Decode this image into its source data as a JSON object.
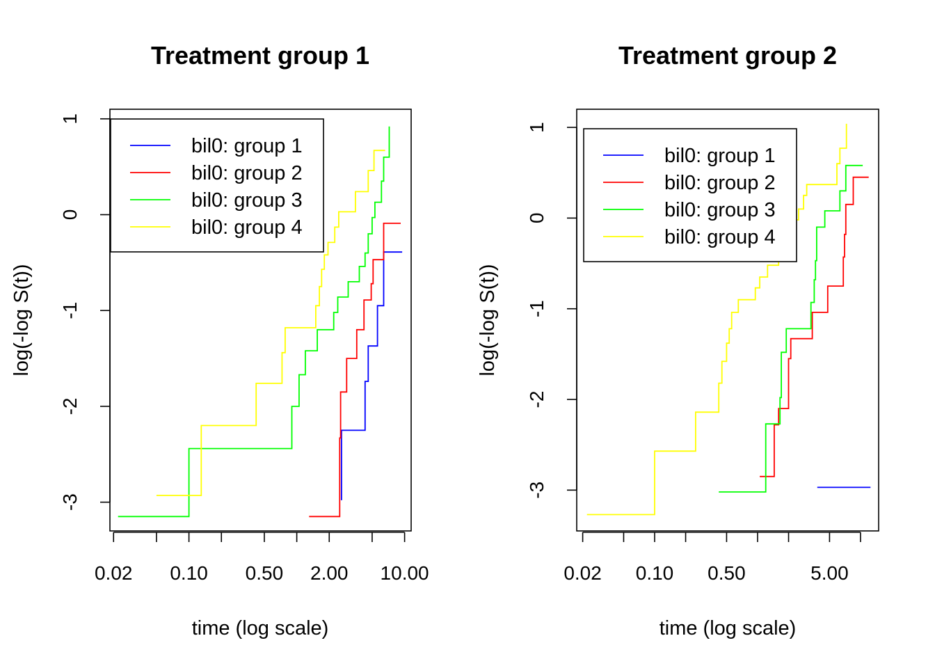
{
  "chart_data": [
    {
      "type": "line",
      "title": "Treatment group 1",
      "xlabel": "time (log scale)",
      "ylabel": "log(-log S(t))",
      "x_scale": "log",
      "xlim": [
        0.0185,
        11.5
      ],
      "ylim": [
        -3.3,
        1.1
      ],
      "x_ticks": [
        0.02,
        0.05,
        0.1,
        0.2,
        0.5,
        1.0,
        2.0,
        5.0,
        10.0
      ],
      "x_tick_labels": [
        "0.02",
        "",
        "0.10",
        "",
        "0.50",
        "",
        "2.00",
        "",
        "10.00"
      ],
      "y_ticks": [
        -3,
        -2,
        -1,
        0,
        1
      ],
      "y_tick_labels": [
        "-3",
        "-2",
        "-1",
        "0",
        "1"
      ],
      "legend_position": "top-left",
      "series": [
        {
          "name": "bil0: group 1",
          "color": "#0000ff",
          "points": [
            [
              2.6,
              -2.98
            ],
            [
              2.6,
              -2.25
            ],
            [
              4.3,
              -2.25
            ],
            [
              4.3,
              -1.74
            ],
            [
              4.6,
              -1.74
            ],
            [
              4.6,
              -1.37
            ],
            [
              5.6,
              -1.37
            ],
            [
              5.6,
              -0.95
            ],
            [
              6.4,
              -0.95
            ],
            [
              6.4,
              -0.39
            ],
            [
              9.5,
              -0.39
            ]
          ]
        },
        {
          "name": "bil0: group 2",
          "color": "#ff0000",
          "points": [
            [
              1.3,
              -3.15
            ],
            [
              2.5,
              -3.15
            ],
            [
              2.5,
              -2.33
            ],
            [
              2.55,
              -2.33
            ],
            [
              2.55,
              -1.85
            ],
            [
              2.9,
              -1.85
            ],
            [
              2.9,
              -1.5
            ],
            [
              3.6,
              -1.5
            ],
            [
              3.6,
              -1.2
            ],
            [
              4.2,
              -1.2
            ],
            [
              4.2,
              -0.89
            ],
            [
              4.9,
              -0.89
            ],
            [
              4.9,
              -0.72
            ],
            [
              5.1,
              -0.72
            ],
            [
              5.1,
              -0.47
            ],
            [
              6.4,
              -0.47
            ],
            [
              6.4,
              -0.09
            ],
            [
              9.2,
              -0.09
            ]
          ]
        },
        {
          "name": "bil0: group 3",
          "color": "#00ff00",
          "points": [
            [
              0.022,
              -3.15
            ],
            [
              0.1,
              -3.15
            ],
            [
              0.1,
              -2.44
            ],
            [
              0.9,
              -2.44
            ],
            [
              0.9,
              -2.0
            ],
            [
              1.05,
              -2.0
            ],
            [
              1.05,
              -1.67
            ],
            [
              1.2,
              -1.67
            ],
            [
              1.2,
              -1.42
            ],
            [
              1.55,
              -1.42
            ],
            [
              1.55,
              -1.2
            ],
            [
              2.2,
              -1.2
            ],
            [
              2.2,
              -1.02
            ],
            [
              2.4,
              -1.02
            ],
            [
              2.4,
              -0.86
            ],
            [
              3.0,
              -0.86
            ],
            [
              3.0,
              -0.7
            ],
            [
              3.8,
              -0.7
            ],
            [
              3.8,
              -0.54
            ],
            [
              4.3,
              -0.54
            ],
            [
              4.3,
              -0.4
            ],
            [
              4.6,
              -0.4
            ],
            [
              4.6,
              -0.2
            ],
            [
              5.0,
              -0.2
            ],
            [
              5.0,
              -0.03
            ],
            [
              5.3,
              -0.03
            ],
            [
              5.3,
              0.13
            ],
            [
              6.1,
              0.13
            ],
            [
              6.1,
              0.35
            ],
            [
              6.4,
              0.35
            ],
            [
              6.4,
              0.6
            ],
            [
              7.2,
              0.6
            ],
            [
              7.2,
              0.92
            ]
          ]
        },
        {
          "name": "bil0: group 4",
          "color": "#ffff00",
          "points": [
            [
              0.05,
              -2.93
            ],
            [
              0.13,
              -2.93
            ],
            [
              0.13,
              -2.2
            ],
            [
              0.42,
              -2.2
            ],
            [
              0.42,
              -1.76
            ],
            [
              0.73,
              -1.76
            ],
            [
              0.73,
              -1.44
            ],
            [
              0.78,
              -1.44
            ],
            [
              0.78,
              -1.18
            ],
            [
              1.5,
              -1.18
            ],
            [
              1.5,
              -0.95
            ],
            [
              1.62,
              -0.95
            ],
            [
              1.62,
              -0.75
            ],
            [
              1.7,
              -0.75
            ],
            [
              1.7,
              -0.57
            ],
            [
              1.8,
              -0.57
            ],
            [
              1.8,
              -0.42
            ],
            [
              1.95,
              -0.42
            ],
            [
              1.95,
              -0.29
            ],
            [
              2.25,
              -0.29
            ],
            [
              2.25,
              -0.13
            ],
            [
              2.45,
              -0.13
            ],
            [
              2.45,
              0.03
            ],
            [
              3.5,
              0.03
            ],
            [
              3.5,
              0.24
            ],
            [
              4.6,
              0.24
            ],
            [
              4.6,
              0.46
            ],
            [
              5.2,
              0.46
            ],
            [
              5.2,
              0.67
            ],
            [
              6.6,
              0.67
            ]
          ]
        }
      ]
    },
    {
      "type": "line",
      "title": "Treatment group 2",
      "xlabel": "time (log scale)",
      "ylabel": "log(-log S(t))",
      "x_scale": "log",
      "xlim": [
        0.0175,
        15.0
      ],
      "ylim": [
        -3.45,
        1.2
      ],
      "x_ticks": [
        0.02,
        0.05,
        0.1,
        0.2,
        0.5,
        1.0,
        2.0,
        5.0,
        10.0
      ],
      "x_tick_labels": [
        "0.02",
        "",
        "0.10",
        "",
        "0.50",
        "",
        "",
        "5.00",
        ""
      ],
      "y_ticks": [
        -3,
        -2,
        -1,
        0,
        1
      ],
      "y_tick_labels": [
        "-3",
        "-2",
        "-1",
        "0",
        "1"
      ],
      "legend_position": "top-left",
      "series": [
        {
          "name": "bil0: group 1",
          "color": "#0000ff",
          "points": [
            [
              3.8,
              -2.97
            ],
            [
              12.5,
              -2.97
            ]
          ]
        },
        {
          "name": "bil0: group 2",
          "color": "#ff0000",
          "points": [
            [
              1.05,
              -2.85
            ],
            [
              1.45,
              -2.85
            ],
            [
              1.45,
              -2.28
            ],
            [
              1.6,
              -2.28
            ],
            [
              1.6,
              -2.1
            ],
            [
              2.0,
              -2.1
            ],
            [
              2.0,
              -1.55
            ],
            [
              2.1,
              -1.55
            ],
            [
              2.1,
              -1.33
            ],
            [
              3.4,
              -1.33
            ],
            [
              3.4,
              -1.04
            ],
            [
              4.8,
              -1.04
            ],
            [
              4.8,
              -0.75
            ],
            [
              6.8,
              -0.75
            ],
            [
              6.8,
              -0.43
            ],
            [
              7.0,
              -0.43
            ],
            [
              7.0,
              -0.18
            ],
            [
              7.2,
              -0.18
            ],
            [
              7.2,
              0.15
            ],
            [
              8.5,
              0.15
            ],
            [
              8.5,
              0.45
            ],
            [
              12.0,
              0.45
            ]
          ]
        },
        {
          "name": "bil0: group 3",
          "color": "#00ff00",
          "points": [
            [
              0.42,
              -3.02
            ],
            [
              1.2,
              -3.02
            ],
            [
              1.2,
              -2.27
            ],
            [
              1.65,
              -2.27
            ],
            [
              1.65,
              -1.98
            ],
            [
              1.7,
              -1.98
            ],
            [
              1.7,
              -1.48
            ],
            [
              1.9,
              -1.48
            ],
            [
              1.9,
              -1.22
            ],
            [
              3.3,
              -1.22
            ],
            [
              3.3,
              -0.93
            ],
            [
              3.55,
              -0.93
            ],
            [
              3.55,
              -0.68
            ],
            [
              3.65,
              -0.68
            ],
            [
              3.65,
              -0.47
            ],
            [
              3.75,
              -0.47
            ],
            [
              3.75,
              -0.1
            ],
            [
              4.5,
              -0.1
            ],
            [
              4.5,
              0.08
            ],
            [
              6.3,
              0.08
            ],
            [
              6.3,
              0.3
            ],
            [
              7.2,
              0.3
            ],
            [
              7.2,
              0.58
            ],
            [
              10.5,
              0.58
            ]
          ]
        },
        {
          "name": "bil0: group 4",
          "color": "#ffff00",
          "points": [
            [
              0.022,
              -3.27
            ],
            [
              0.1,
              -3.27
            ],
            [
              0.1,
              -2.57
            ],
            [
              0.25,
              -2.57
            ],
            [
              0.25,
              -2.14
            ],
            [
              0.42,
              -2.14
            ],
            [
              0.42,
              -1.82
            ],
            [
              0.45,
              -1.82
            ],
            [
              0.45,
              -1.58
            ],
            [
              0.5,
              -1.58
            ],
            [
              0.5,
              -1.38
            ],
            [
              0.53,
              -1.38
            ],
            [
              0.53,
              -1.22
            ],
            [
              0.56,
              -1.22
            ],
            [
              0.56,
              -1.04
            ],
            [
              0.65,
              -1.04
            ],
            [
              0.65,
              -0.9
            ],
            [
              0.95,
              -0.9
            ],
            [
              0.95,
              -0.77
            ],
            [
              1.05,
              -0.77
            ],
            [
              1.05,
              -0.65
            ],
            [
              1.25,
              -0.65
            ],
            [
              1.25,
              -0.52
            ],
            [
              1.6,
              -0.52
            ],
            [
              1.6,
              -0.36
            ],
            [
              1.85,
              -0.36
            ],
            [
              1.85,
              -0.18
            ],
            [
              2.3,
              -0.18
            ],
            [
              2.3,
              -0.02
            ],
            [
              2.5,
              -0.02
            ],
            [
              2.5,
              0.1
            ],
            [
              2.8,
              0.1
            ],
            [
              2.8,
              0.25
            ],
            [
              3.0,
              0.25
            ],
            [
              3.0,
              0.37
            ],
            [
              5.9,
              0.37
            ],
            [
              5.9,
              0.6
            ],
            [
              6.3,
              0.6
            ],
            [
              6.3,
              0.77
            ],
            [
              7.3,
              0.77
            ],
            [
              7.3,
              1.04
            ]
          ]
        }
      ]
    }
  ]
}
